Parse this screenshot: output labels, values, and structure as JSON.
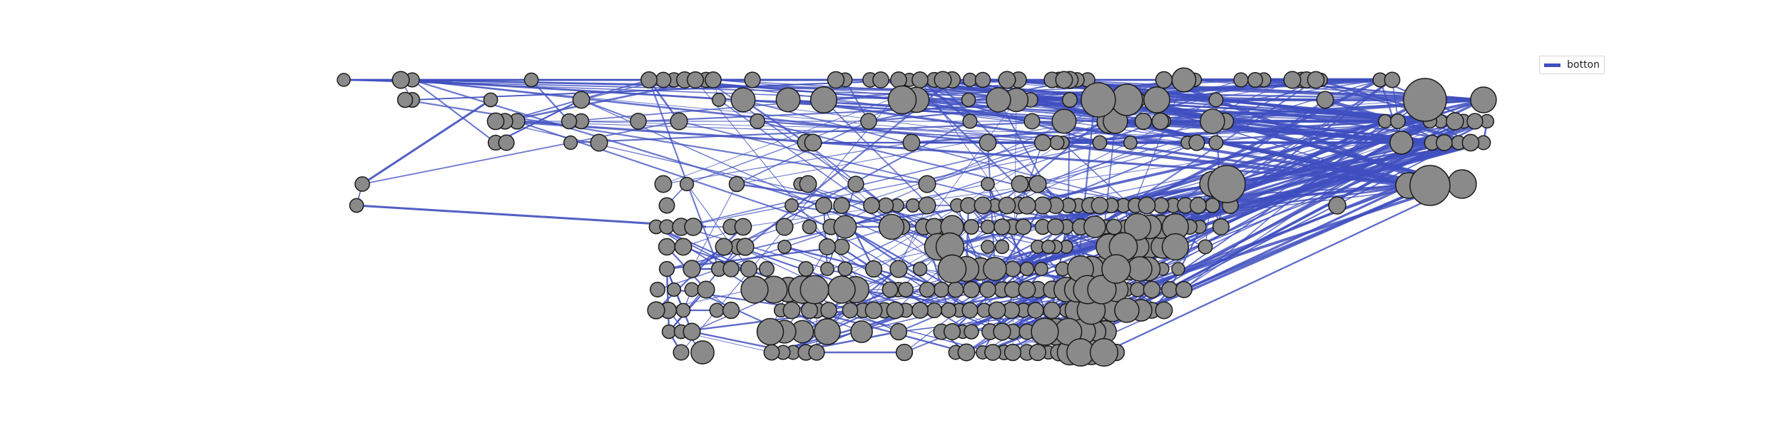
{
  "legend": {
    "label": "botton",
    "color": "#3f4fbf"
  },
  "style": {
    "edge_color": "#3f4fbf",
    "node_fill": "#8a8a8a",
    "node_stroke": "#1a1a1a"
  }
}
